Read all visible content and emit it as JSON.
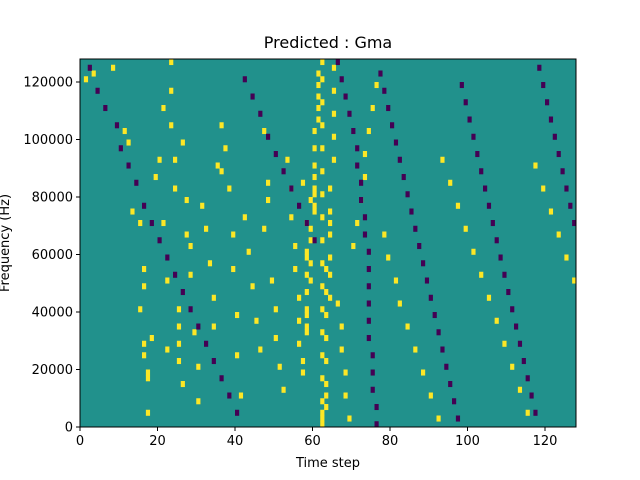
{
  "chart_data": {
    "type": "heatmap",
    "title": "Predicted : Gma",
    "xlabel": "Time step",
    "ylabel": "Frequency (Hz)",
    "xlim": [
      0,
      128
    ],
    "ylim": [
      0,
      128000
    ],
    "x_ticks": [
      0,
      20,
      40,
      60,
      80,
      100,
      120
    ],
    "y_ticks": [
      0,
      20000,
      40000,
      60000,
      80000,
      100000,
      120000
    ],
    "x_tick_labels": [
      "0",
      "20",
      "40",
      "60",
      "80",
      "100",
      "120"
    ],
    "y_tick_labels": [
      "0",
      "20000",
      "40000",
      "60000",
      "80000",
      "100000",
      "120000"
    ],
    "grid": false,
    "levels": {
      "low": -1,
      "mid": 0,
      "high": 1
    },
    "colors": {
      "low": "#440154",
      "mid": "#21918c",
      "high": "#fde725"
    },
    "n_time_steps": 128,
    "n_freq_bins": 64,
    "bin_height_hz": 2000,
    "high_cells": [
      [
        1,
        60
      ],
      [
        3,
        61
      ],
      [
        8,
        62
      ],
      [
        11,
        51
      ],
      [
        12,
        49
      ],
      [
        13,
        37
      ],
      [
        15,
        35
      ],
      [
        15,
        20
      ],
      [
        16,
        14
      ],
      [
        16,
        12
      ],
      [
        16,
        24
      ],
      [
        16,
        27
      ],
      [
        17,
        8
      ],
      [
        17,
        9
      ],
      [
        17,
        2
      ],
      [
        18,
        15
      ],
      [
        19,
        43
      ],
      [
        20,
        46
      ],
      [
        21,
        55
      ],
      [
        21,
        35
      ],
      [
        22,
        13
      ],
      [
        22,
        25
      ],
      [
        23,
        63
      ],
      [
        23,
        58
      ],
      [
        23,
        52
      ],
      [
        24,
        46
      ],
      [
        24,
        41
      ],
      [
        25,
        20
      ],
      [
        25,
        17
      ],
      [
        25,
        14
      ],
      [
        25,
        11
      ],
      [
        26,
        7
      ],
      [
        26,
        49
      ],
      [
        27,
        39
      ],
      [
        27,
        33
      ],
      [
        28,
        31
      ],
      [
        28,
        26
      ],
      [
        29,
        16
      ],
      [
        30,
        10
      ],
      [
        30,
        4
      ],
      [
        31,
        38
      ],
      [
        32,
        34
      ],
      [
        33,
        28
      ],
      [
        34,
        22
      ],
      [
        34,
        17
      ],
      [
        35,
        45
      ],
      [
        36,
        52
      ],
      [
        36,
        44
      ],
      [
        37,
        48
      ],
      [
        38,
        41
      ],
      [
        39,
        33
      ],
      [
        39,
        27
      ],
      [
        40,
        19
      ],
      [
        40,
        12
      ],
      [
        41,
        5
      ],
      [
        42,
        36
      ],
      [
        43,
        30
      ],
      [
        44,
        24
      ],
      [
        45,
        18
      ],
      [
        46,
        13
      ],
      [
        47,
        51
      ],
      [
        47,
        34
      ],
      [
        48,
        39
      ],
      [
        48,
        42
      ],
      [
        49,
        25
      ],
      [
        50,
        20
      ],
      [
        50,
        15
      ],
      [
        51,
        10
      ],
      [
        52,
        6
      ],
      [
        53,
        46
      ],
      [
        54,
        41
      ],
      [
        54,
        36
      ],
      [
        55,
        31
      ],
      [
        55,
        27
      ],
      [
        56,
        22
      ],
      [
        56,
        18
      ],
      [
        56,
        14
      ],
      [
        57,
        11
      ],
      [
        57,
        9
      ],
      [
        57,
        42
      ],
      [
        58,
        35
      ],
      [
        58,
        30
      ],
      [
        58,
        29
      ],
      [
        58,
        26
      ],
      [
        58,
        23
      ],
      [
        58,
        20
      ],
      [
        58,
        19
      ],
      [
        58,
        17
      ],
      [
        58,
        16
      ],
      [
        59,
        25
      ],
      [
        59,
        28
      ],
      [
        59,
        32
      ],
      [
        59,
        34
      ],
      [
        59,
        39
      ],
      [
        60,
        37
      ],
      [
        60,
        38
      ],
      [
        60,
        40
      ],
      [
        60,
        41
      ],
      [
        60,
        43
      ],
      [
        60,
        45
      ],
      [
        60,
        48
      ],
      [
        60,
        51
      ],
      [
        61,
        53
      ],
      [
        61,
        55
      ],
      [
        61,
        57
      ],
      [
        61,
        59
      ],
      [
        61,
        61
      ],
      [
        62,
        63
      ],
      [
        62,
        60
      ],
      [
        62,
        56
      ],
      [
        62,
        52
      ],
      [
        62,
        48
      ],
      [
        62,
        44
      ],
      [
        62,
        40
      ],
      [
        62,
        36
      ],
      [
        62,
        32
      ],
      [
        62,
        28
      ],
      [
        62,
        24
      ],
      [
        62,
        20
      ],
      [
        62,
        16
      ],
      [
        62,
        12
      ],
      [
        62,
        8
      ],
      [
        62,
        4
      ],
      [
        62,
        2
      ],
      [
        62,
        1
      ],
      [
        62,
        0
      ],
      [
        63,
        27
      ],
      [
        63,
        23
      ],
      [
        63,
        19
      ],
      [
        63,
        15
      ],
      [
        63,
        11
      ],
      [
        63,
        7
      ],
      [
        63,
        5
      ],
      [
        63,
        3
      ],
      [
        64,
        22
      ],
      [
        64,
        26
      ],
      [
        64,
        29
      ],
      [
        64,
        33
      ],
      [
        64,
        35
      ],
      [
        64,
        37
      ],
      [
        64,
        41
      ],
      [
        65,
        46
      ],
      [
        65,
        50
      ],
      [
        65,
        54
      ],
      [
        65,
        58
      ],
      [
        65,
        62
      ],
      [
        66,
        21
      ],
      [
        67,
        17
      ],
      [
        67,
        13
      ],
      [
        68,
        9
      ],
      [
        68,
        5
      ],
      [
        69,
        1
      ],
      [
        70,
        31
      ],
      [
        71,
        35
      ],
      [
        72,
        39
      ],
      [
        73,
        43
      ],
      [
        73,
        47
      ],
      [
        74,
        51
      ],
      [
        75,
        55
      ],
      [
        76,
        59
      ],
      [
        78,
        33
      ],
      [
        79,
        29
      ],
      [
        81,
        25
      ],
      [
        82,
        21
      ],
      [
        84,
        17
      ],
      [
        86,
        13
      ],
      [
        88,
        9
      ],
      [
        90,
        5
      ],
      [
        92,
        1
      ],
      [
        93,
        46
      ],
      [
        95,
        42
      ],
      [
        97,
        38
      ],
      [
        99,
        34
      ],
      [
        101,
        30
      ],
      [
        103,
        26
      ],
      [
        105,
        22
      ],
      [
        107,
        18
      ],
      [
        109,
        14
      ],
      [
        111,
        10
      ],
      [
        113,
        6
      ],
      [
        115,
        2
      ],
      [
        117,
        45
      ],
      [
        119,
        41
      ],
      [
        121,
        37
      ],
      [
        123,
        33
      ],
      [
        125,
        29
      ],
      [
        127,
        25
      ]
    ],
    "low_cells": [
      [
        2,
        62
      ],
      [
        4,
        58
      ],
      [
        6,
        55
      ],
      [
        9,
        52
      ],
      [
        10,
        48
      ],
      [
        12,
        45
      ],
      [
        14,
        42
      ],
      [
        16,
        38
      ],
      [
        18,
        35
      ],
      [
        20,
        32
      ],
      [
        22,
        29
      ],
      [
        24,
        26
      ],
      [
        26,
        23
      ],
      [
        28,
        20
      ],
      [
        30,
        17
      ],
      [
        32,
        14
      ],
      [
        34,
        11
      ],
      [
        36,
        8
      ],
      [
        38,
        5
      ],
      [
        40,
        2
      ],
      [
        42,
        60
      ],
      [
        44,
        57
      ],
      [
        46,
        54
      ],
      [
        48,
        50
      ],
      [
        50,
        47
      ],
      [
        52,
        44
      ],
      [
        54,
        41
      ],
      [
        56,
        38
      ],
      [
        58,
        35
      ],
      [
        60,
        32
      ],
      [
        66,
        63
      ],
      [
        67,
        60
      ],
      [
        68,
        57
      ],
      [
        69,
        54
      ],
      [
        70,
        51
      ],
      [
        71,
        48
      ],
      [
        71,
        45
      ],
      [
        72,
        42
      ],
      [
        72,
        39
      ],
      [
        73,
        36
      ],
      [
        73,
        33
      ],
      [
        74,
        30
      ],
      [
        74,
        27
      ],
      [
        74,
        24
      ],
      [
        74,
        21
      ],
      [
        74,
        18
      ],
      [
        74,
        15
      ],
      [
        75,
        12
      ],
      [
        75,
        9
      ],
      [
        75,
        6
      ],
      [
        76,
        3
      ],
      [
        76,
        0
      ],
      [
        77,
        61
      ],
      [
        78,
        58
      ],
      [
        79,
        55
      ],
      [
        80,
        52
      ],
      [
        81,
        49
      ],
      [
        82,
        46
      ],
      [
        83,
        43
      ],
      [
        84,
        40
      ],
      [
        85,
        37
      ],
      [
        86,
        34
      ],
      [
        87,
        31
      ],
      [
        88,
        28
      ],
      [
        89,
        25
      ],
      [
        90,
        22
      ],
      [
        91,
        19
      ],
      [
        92,
        16
      ],
      [
        93,
        13
      ],
      [
        94,
        10
      ],
      [
        95,
        7
      ],
      [
        96,
        4
      ],
      [
        97,
        1
      ],
      [
        98,
        59
      ],
      [
        99,
        56
      ],
      [
        100,
        53
      ],
      [
        101,
        50
      ],
      [
        102,
        47
      ],
      [
        103,
        44
      ],
      [
        104,
        41
      ],
      [
        105,
        38
      ],
      [
        106,
        35
      ],
      [
        107,
        32
      ],
      [
        108,
        29
      ],
      [
        109,
        26
      ],
      [
        110,
        23
      ],
      [
        111,
        20
      ],
      [
        112,
        17
      ],
      [
        113,
        14
      ],
      [
        114,
        11
      ],
      [
        115,
        8
      ],
      [
        116,
        5
      ],
      [
        117,
        2
      ],
      [
        118,
        62
      ],
      [
        119,
        59
      ],
      [
        120,
        56
      ],
      [
        121,
        53
      ],
      [
        122,
        50
      ],
      [
        123,
        47
      ],
      [
        124,
        44
      ],
      [
        125,
        41
      ],
      [
        126,
        38
      ],
      [
        127,
        35
      ]
    ]
  }
}
